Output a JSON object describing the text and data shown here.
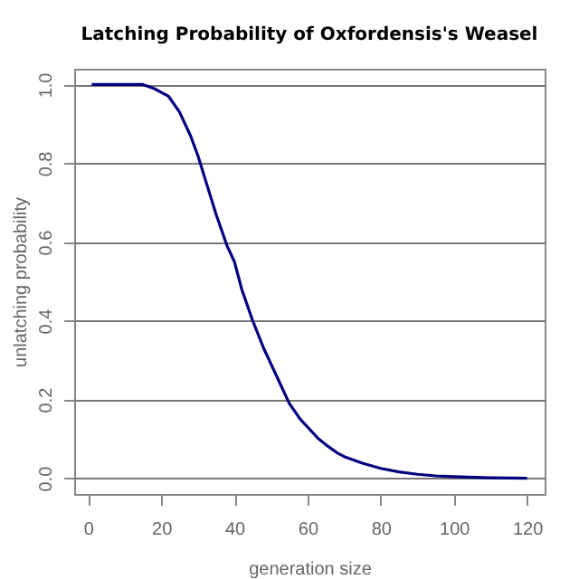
{
  "chart_data": {
    "type": "line",
    "title": "Latching Probability of Oxfordensis's Weasel",
    "xlabel": "generation size",
    "ylabel": "unlatching probability",
    "x": [
      1,
      5,
      10,
      15,
      18,
      20,
      22,
      25,
      28,
      30,
      32,
      35,
      38,
      40,
      42,
      45,
      48,
      50,
      52,
      55,
      58,
      60,
      63,
      65,
      68,
      70,
      75,
      80,
      85,
      90,
      95,
      100,
      110,
      120
    ],
    "series": [
      {
        "color": "#00007f",
        "values": [
          1.0,
          1.0,
          1.0,
          1.0,
          0.99,
          0.98,
          0.97,
          0.93,
          0.87,
          0.82,
          0.76,
          0.67,
          0.59,
          0.55,
          0.48,
          0.4,
          0.33,
          0.29,
          0.25,
          0.19,
          0.15,
          0.13,
          0.1,
          0.085,
          0.065,
          0.055,
          0.038,
          0.025,
          0.016,
          0.01,
          0.006,
          0.004,
          0.001,
          0.0
        ]
      }
    ],
    "xlim": [
      -3.8,
      124.8
    ],
    "ylim": [
      -0.04,
      1.04
    ],
    "xticks": [
      0,
      20,
      40,
      60,
      80,
      100,
      120
    ],
    "yticks": [
      {
        "value": 0,
        "label": "0.0"
      },
      {
        "value": 0.2,
        "label": "0.2"
      },
      {
        "value": 0.4,
        "label": "0.4"
      },
      {
        "value": 0.6,
        "label": "0.6"
      },
      {
        "value": 0.8,
        "label": "0.8"
      },
      {
        "value": 1,
        "label": "1.0"
      }
    ],
    "grid": "y",
    "legend": false
  }
}
